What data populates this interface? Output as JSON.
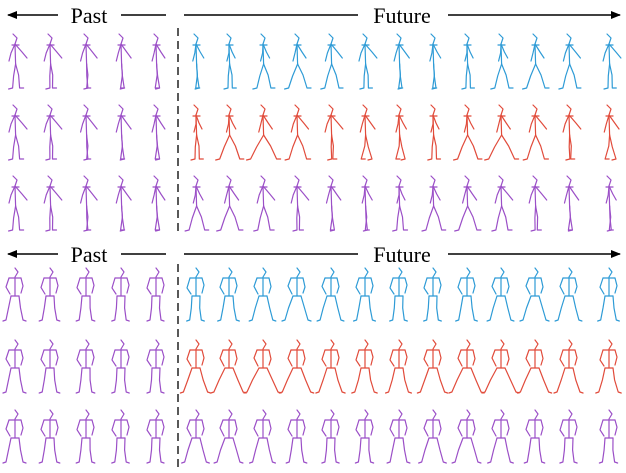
{
  "header": {
    "past_label": "Past",
    "future_label": "Future"
  },
  "colors": {
    "observed": "#9b4fc7",
    "ground_truth": "#2e9bd6",
    "prediction": "#e14b3b",
    "divider": "#222222"
  },
  "panels": [
    {
      "name": "walking-sequence",
      "past_frames": 5,
      "future_frames": 13,
      "rows": [
        {
          "future_color": "ground_truth"
        },
        {
          "future_color": "prediction"
        },
        {
          "future_color": "observed"
        }
      ]
    },
    {
      "name": "standing-sequence",
      "past_frames": 5,
      "future_frames": 13,
      "rows": [
        {
          "future_color": "ground_truth"
        },
        {
          "future_color": "prediction"
        },
        {
          "future_color": "observed"
        }
      ]
    }
  ]
}
